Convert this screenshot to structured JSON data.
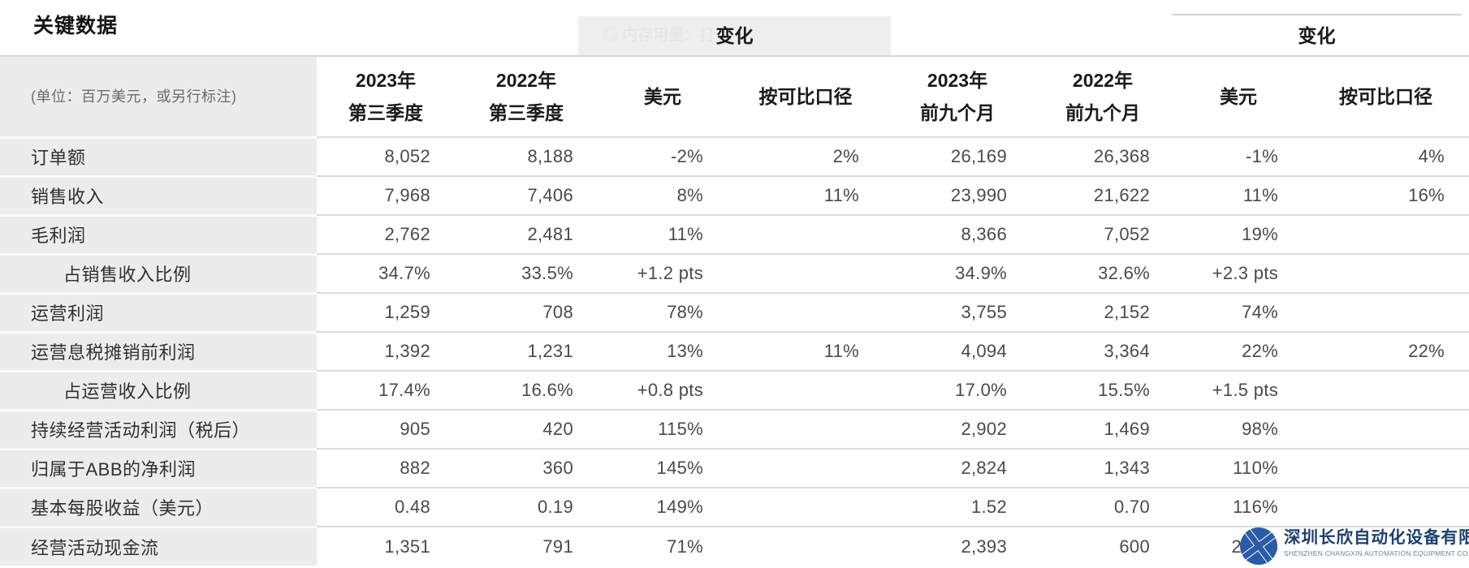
{
  "title": "关键数据",
  "change_group_quarter": {
    "label": "变化"
  },
  "change_group_ninemonths": {
    "label": "变化"
  },
  "faint_overlay": {
    "icon": "circle-icon",
    "text": "内存用量：打"
  },
  "table": {
    "unit_note": "(单位：百万美元，或另行标注)",
    "columns": [
      {
        "line1": "2023年",
        "line2": "第三季度"
      },
      {
        "line1": "2022年",
        "line2": "第三季度"
      },
      {
        "line1": "美元",
        "line2": ""
      },
      {
        "line1": "按可比口径",
        "line2": ""
      },
      {
        "line1": "2023年",
        "line2": "前九个月"
      },
      {
        "line1": "2022年",
        "line2": "前九个月"
      },
      {
        "line1": "美元",
        "line2": ""
      },
      {
        "line1": "按可比口径",
        "line2": ""
      }
    ],
    "rows": [
      {
        "label": "订单额",
        "indent": false,
        "values": [
          "8,052",
          "8,188",
          "-2%",
          "2%",
          "26,169",
          "26,368",
          "-1%",
          "4%"
        ]
      },
      {
        "label": "销售收入",
        "indent": false,
        "values": [
          "7,968",
          "7,406",
          "8%",
          "11%",
          "23,990",
          "21,622",
          "11%",
          "16%"
        ]
      },
      {
        "label": "毛利润",
        "indent": false,
        "values": [
          "2,762",
          "2,481",
          "11%",
          "",
          "8,366",
          "7,052",
          "19%",
          ""
        ]
      },
      {
        "label": "占销售收入比例",
        "indent": true,
        "values": [
          "34.7%",
          "33.5%",
          "+1.2 pts",
          "",
          "34.9%",
          "32.6%",
          "+2.3 pts",
          ""
        ]
      },
      {
        "label": "运营利润",
        "indent": false,
        "values": [
          "1,259",
          "708",
          "78%",
          "",
          "3,755",
          "2,152",
          "74%",
          ""
        ]
      },
      {
        "label": "运营息税摊销前利润",
        "indent": false,
        "values": [
          "1,392",
          "1,231",
          "13%",
          "11%",
          "4,094",
          "3,364",
          "22%",
          "22%"
        ]
      },
      {
        "label": "占运营收入比例",
        "indent": true,
        "values": [
          "17.4%",
          "16.6%",
          "+0.8 pts",
          "",
          "17.0%",
          "15.5%",
          "+1.5 pts",
          ""
        ]
      },
      {
        "label": "持续经营活动利润（税后）",
        "indent": false,
        "values": [
          "905",
          "420",
          "115%",
          "",
          "2,902",
          "1,469",
          "98%",
          ""
        ]
      },
      {
        "label": "归属于ABB的净利润",
        "indent": false,
        "values": [
          "882",
          "360",
          "145%",
          "",
          "2,824",
          "1,343",
          "110%",
          ""
        ]
      },
      {
        "label": "基本每股收益（美元）",
        "indent": false,
        "values": [
          "0.48",
          "0.19",
          "149%",
          "",
          "1.52",
          "0.70",
          "116%",
          ""
        ]
      },
      {
        "label": "经营活动现金流",
        "indent": false,
        "values": [
          "1,351",
          "791",
          "71%",
          "",
          "2,393",
          "600",
          "299%",
          ""
        ]
      }
    ]
  },
  "watermark": {
    "company_zh": "深圳长欣自动化设备有限公司",
    "company_en": "SHENZHEN CHANGXIN AUTOMATION EQUIPMENT CO. LTD",
    "logo_color": "#2a5ba6"
  },
  "colors": {
    "label_column_bg": "#ececeb",
    "change_band_bg": "#efeeec",
    "row_separator": "#dcdbd9",
    "header_text": "#1a1a1a",
    "value_text": "#4a4a4a",
    "watermark_blue": "#2a5ba6",
    "watermark_navy": "#1d3f6e"
  }
}
